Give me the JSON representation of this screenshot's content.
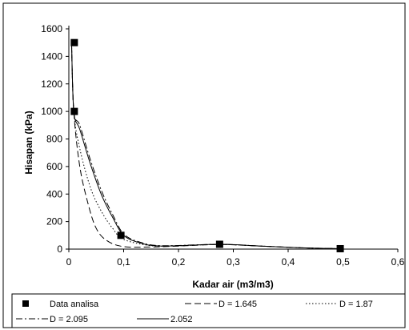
{
  "chart_data": {
    "type": "scatter",
    "title": "",
    "xlabel": "Kadar air (m3/m3)",
    "ylabel": "Hisapan (kPa)",
    "xlim": [
      0,
      0.6
    ],
    "ylim": [
      0,
      1600
    ],
    "x_ticks": [
      "0",
      "0,1",
      "0,2",
      "0,3",
      "0,4",
      "0,5",
      "0,6"
    ],
    "y_ticks": [
      "0",
      "200",
      "400",
      "600",
      "800",
      "1000",
      "1200",
      "1400",
      "1600"
    ],
    "grid": false,
    "legend_position": "bottom",
    "data_points": {
      "name": "Data analisa",
      "marker": "square",
      "points": [
        {
          "x": 0.01,
          "y": 1500
        },
        {
          "x": 0.01,
          "y": 1000
        },
        {
          "x": 0.095,
          "y": 100
        },
        {
          "x": 0.275,
          "y": 35
        },
        {
          "x": 0.495,
          "y": 3
        }
      ]
    },
    "series": [
      {
        "name": "D = 1.645",
        "dash": "dashed",
        "points": [
          [
            0.005,
            1480
          ],
          [
            0.009,
            1000
          ],
          [
            0.02,
            600
          ],
          [
            0.035,
            330
          ],
          [
            0.05,
            150
          ],
          [
            0.07,
            60
          ],
          [
            0.1,
            18
          ],
          [
            0.15,
            15
          ],
          [
            0.2,
            22
          ],
          [
            0.275,
            33
          ],
          [
            0.35,
            22
          ],
          [
            0.42,
            10
          ],
          [
            0.495,
            3
          ]
        ]
      },
      {
        "name": "D = 1.87",
        "dash": "dotted",
        "points": [
          [
            0.005,
            1490
          ],
          [
            0.009,
            1000
          ],
          [
            0.02,
            730
          ],
          [
            0.04,
            440
          ],
          [
            0.06,
            270
          ],
          [
            0.08,
            150
          ],
          [
            0.1,
            70
          ],
          [
            0.15,
            25
          ],
          [
            0.2,
            24
          ],
          [
            0.275,
            34
          ],
          [
            0.35,
            22
          ],
          [
            0.42,
            10
          ],
          [
            0.495,
            3
          ]
        ]
      },
      {
        "name": "D = 2.095",
        "dash": "dashdot",
        "points": [
          [
            0.005,
            1500
          ],
          [
            0.009,
            1000
          ],
          [
            0.02,
            900
          ],
          [
            0.04,
            640
          ],
          [
            0.06,
            420
          ],
          [
            0.08,
            250
          ],
          [
            0.1,
            110
          ],
          [
            0.13,
            50
          ],
          [
            0.17,
            25
          ],
          [
            0.275,
            35
          ],
          [
            0.35,
            22
          ],
          [
            0.42,
            10
          ],
          [
            0.495,
            3
          ]
        ]
      },
      {
        "name": "2.052",
        "dash": "solid",
        "points": [
          [
            0.005,
            1500
          ],
          [
            0.009,
            1000
          ],
          [
            0.02,
            870
          ],
          [
            0.04,
            610
          ],
          [
            0.06,
            390
          ],
          [
            0.08,
            230
          ],
          [
            0.1,
            100
          ],
          [
            0.13,
            45
          ],
          [
            0.17,
            22
          ],
          [
            0.275,
            35
          ],
          [
            0.35,
            22
          ],
          [
            0.42,
            10
          ],
          [
            0.495,
            3
          ]
        ]
      }
    ]
  }
}
